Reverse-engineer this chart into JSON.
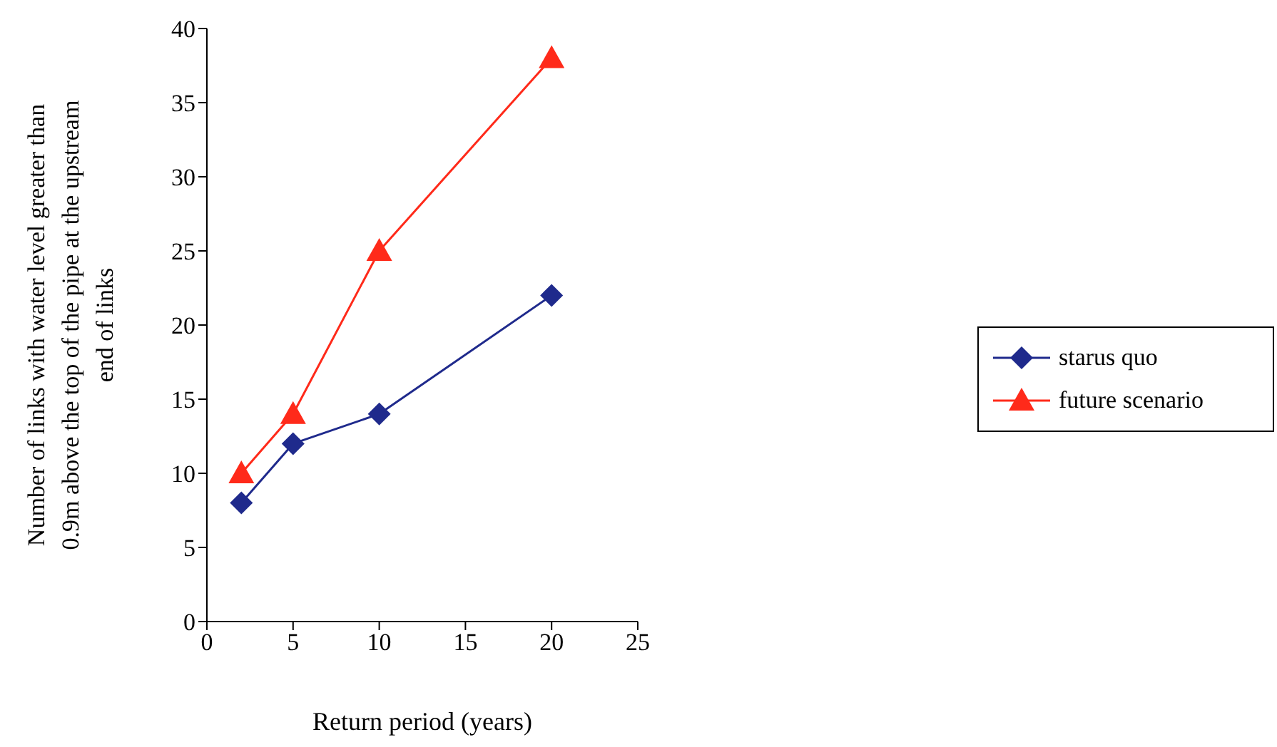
{
  "chart_data": {
    "type": "line",
    "xlabel": "Return period (years)",
    "ylabel": "Number of links with water level greater than 0.9m above the top of the pipe at the upstream end of links",
    "x": [
      2,
      5,
      10,
      20
    ],
    "series": [
      {
        "name": "starus quo",
        "color": "#1f2a8c",
        "values": [
          8,
          12,
          14,
          22
        ],
        "marker": "diamond"
      },
      {
        "name": "future scenario",
        "color": "#ff2a1a",
        "values": [
          10,
          14,
          25,
          38
        ],
        "marker": "triangle"
      }
    ],
    "xlim": [
      0,
      25
    ],
    "xticks": [
      0,
      5,
      10,
      15,
      20,
      25
    ],
    "ylim": [
      0,
      40
    ],
    "yticks": [
      0,
      5,
      10,
      15,
      20,
      25,
      30,
      35,
      40
    ],
    "grid": false,
    "legend": "right"
  }
}
